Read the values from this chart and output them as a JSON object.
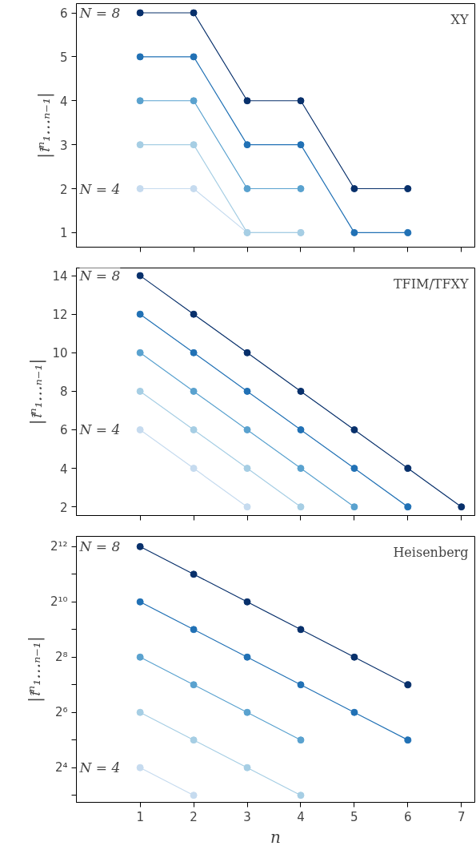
{
  "chart_data": [
    {
      "type": "line",
      "title": "XY",
      "ylabel": "|𝔱̃ⁿ₁…ₙ₋₁|",
      "marker": "circle",
      "grid": false,
      "tick_labels": "y",
      "xlim": [
        -0.19,
        7.25
      ],
      "xticks": [
        1,
        2,
        3,
        4,
        5,
        6,
        7
      ],
      "ylim": [
        0.67,
        6.21
      ],
      "yticks": [
        1,
        2,
        3,
        4,
        5,
        6
      ],
      "annotations": [
        "N = 8",
        "N = 4"
      ],
      "series": [
        {
          "color": "#c6dbef",
          "x": [
            1,
            2,
            3,
            4
          ],
          "values": [
            2,
            2,
            1,
            1
          ]
        },
        {
          "color": "#a6cee4",
          "x": [
            1,
            2,
            3,
            4
          ],
          "values": [
            3,
            3,
            1,
            1
          ]
        },
        {
          "color": "#5aa2cf",
          "x": [
            1,
            2,
            3,
            4
          ],
          "values": [
            4,
            4,
            2,
            2
          ]
        },
        {
          "color": "#2171b5",
          "x": [
            1,
            2,
            3,
            4,
            5,
            6
          ],
          "values": [
            5,
            5,
            3,
            3,
            1,
            1
          ]
        },
        {
          "color": "#08306b",
          "x": [
            1,
            2,
            3,
            4,
            5,
            6
          ],
          "values": [
            6,
            6,
            4,
            4,
            2,
            2
          ]
        }
      ]
    },
    {
      "type": "line",
      "title": "TFIM/TFXY",
      "ylabel": "|𝔱̃ⁿ₁…ₙ₋₁|",
      "marker": "circle",
      "grid": false,
      "tick_labels": "y",
      "xlim": [
        -0.19,
        7.25
      ],
      "xticks": [
        1,
        2,
        3,
        4,
        5,
        6,
        7
      ],
      "ylim": [
        1.55,
        14.4
      ],
      "yticks": [
        2,
        4,
        6,
        8,
        10,
        12,
        14
      ],
      "annotations": [
        "N = 8",
        "N = 4"
      ],
      "series": [
        {
          "color": "#c6dbef",
          "x": [
            1,
            2,
            3
          ],
          "values": [
            6,
            4,
            2
          ]
        },
        {
          "color": "#a6cee4",
          "x": [
            1,
            2,
            3,
            4
          ],
          "values": [
            8,
            6,
            4,
            2
          ]
        },
        {
          "color": "#5aa2cf",
          "x": [
            1,
            2,
            3,
            4,
            5
          ],
          "values": [
            10,
            8,
            6,
            4,
            2
          ]
        },
        {
          "color": "#2171b5",
          "x": [
            1,
            2,
            3,
            4,
            5,
            6
          ],
          "values": [
            12,
            10,
            8,
            6,
            4,
            2
          ]
        },
        {
          "color": "#08306b",
          "x": [
            1,
            2,
            3,
            4,
            5,
            6,
            7
          ],
          "values": [
            14,
            12,
            10,
            8,
            6,
            4,
            2
          ]
        }
      ]
    },
    {
      "type": "line",
      "title": "Heisenberg",
      "xlabel": "n",
      "ylabel": "|𝔱̃ⁿ₁…ₙ₋₁|",
      "marker": "circle",
      "grid": false,
      "log": true,
      "xlim": [
        -0.19,
        7.25
      ],
      "xticks": [
        1,
        2,
        3,
        4,
        5,
        6,
        7
      ],
      "ylim": [
        6.7,
        5300
      ],
      "yticks": [
        {
          "value": 8,
          "label": null
        },
        {
          "value": 16,
          "label": "2⁴"
        },
        {
          "value": 32,
          "label": null
        },
        {
          "value": 64,
          "label": "2⁶"
        },
        {
          "value": 128,
          "label": null
        },
        {
          "value": 256,
          "label": "2⁸"
        },
        {
          "value": 512,
          "label": null
        },
        {
          "value": 1024,
          "label": "2¹⁰"
        },
        {
          "value": 2048,
          "label": null
        },
        {
          "value": 4096,
          "label": "2¹²"
        }
      ],
      "annotations": [
        "N = 8",
        "N = 4"
      ],
      "series": [
        {
          "color": "#c6dbef",
          "x": [
            1,
            2
          ],
          "values": [
            16,
            8
          ]
        },
        {
          "color": "#a6cee4",
          "x": [
            1,
            2,
            3,
            4
          ],
          "values": [
            64,
            32,
            16,
            8
          ]
        },
        {
          "color": "#5aa2cf",
          "x": [
            1,
            2,
            3,
            4
          ],
          "values": [
            256,
            128,
            64,
            32
          ]
        },
        {
          "color": "#2171b5",
          "x": [
            1,
            2,
            3,
            4,
            5,
            6
          ],
          "values": [
            1024,
            512,
            256,
            128,
            64,
            32
          ]
        },
        {
          "color": "#08306b",
          "x": [
            1,
            2,
            3,
            4,
            5,
            6
          ],
          "values": [
            4096,
            2048,
            1024,
            512,
            256,
            128
          ]
        }
      ]
    }
  ]
}
